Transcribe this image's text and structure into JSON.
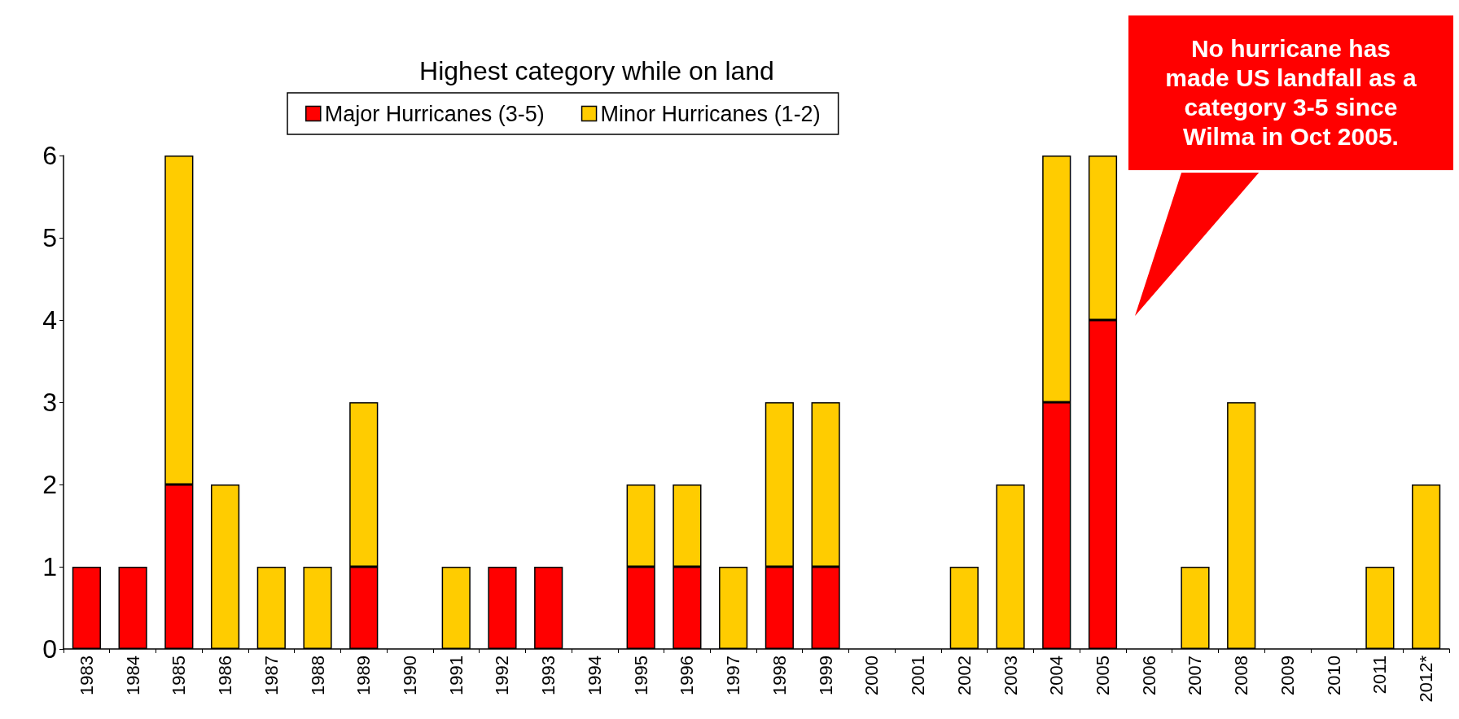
{
  "chart_data": {
    "type": "bar",
    "title": "Highest category while on land",
    "stacked": true,
    "categories": [
      "1983",
      "1984",
      "1985",
      "1986",
      "1987",
      "1988",
      "1989",
      "1990",
      "1991",
      "1992",
      "1993",
      "1994",
      "1995",
      "1996",
      "1997",
      "1998",
      "1999",
      "2000",
      "2001",
      "2002",
      "2003",
      "2004",
      "2005",
      "2006",
      "2007",
      "2008",
      "2009",
      "2010",
      "2011",
      "2012*"
    ],
    "series": [
      {
        "name": "Major Hurricanes (3-5)",
        "color": "#ff0000",
        "values": [
          1,
          1,
          2,
          0,
          0,
          0,
          1,
          0,
          0,
          1,
          1,
          0,
          1,
          1,
          0,
          1,
          1,
          0,
          0,
          0,
          0,
          3,
          4,
          0,
          0,
          0,
          0,
          0,
          0,
          0
        ]
      },
      {
        "name": "Minor Hurricanes (1-2)",
        "color": "#ffcc00",
        "values": [
          0,
          0,
          4,
          2,
          1,
          1,
          2,
          0,
          1,
          0,
          0,
          0,
          1,
          1,
          1,
          2,
          2,
          0,
          0,
          1,
          2,
          3,
          2,
          0,
          1,
          3,
          0,
          0,
          1,
          2
        ]
      }
    ],
    "ylim": [
      0,
      6
    ],
    "yticks": [
      0,
      1,
      2,
      3,
      4,
      5,
      6
    ],
    "grid": false,
    "legend": "top",
    "annotations": [
      "No hurricane has made US landfall as a category 3-5 since Wilma in Oct 2005."
    ]
  }
}
